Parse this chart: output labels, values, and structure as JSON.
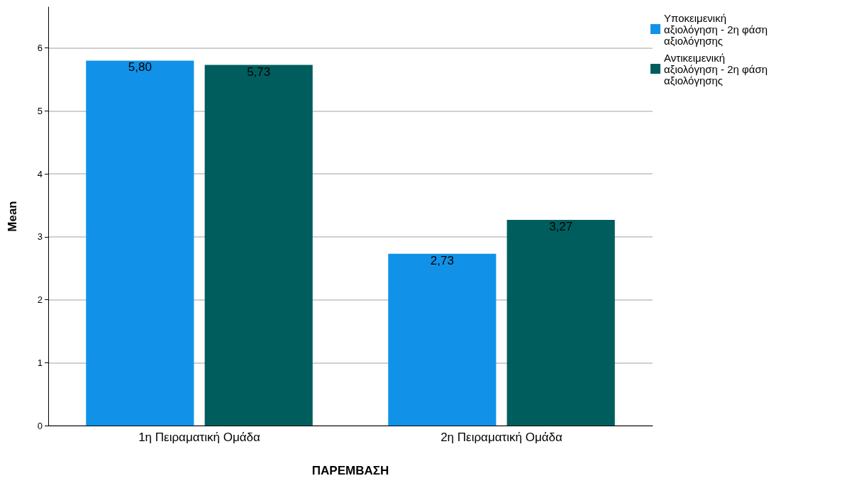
{
  "chart_data": {
    "type": "bar",
    "xlabel": "ΠΑΡΕΜΒΑΣΗ",
    "ylabel": "Mean",
    "categories": [
      "1η Πειραματική Ομάδα",
      "2η Πειραματική Ομάδα"
    ],
    "series": [
      {
        "name": "Υποκειμενική αξιολόγηση - 2η φάση αξιολόγησης",
        "color": "#1192e8",
        "values": [
          5.8,
          2.73
        ],
        "value_labels": [
          "5,80",
          "2,73"
        ]
      },
      {
        "name": "Αντικειμενική αξιολόγηση - 2η φάση αξιολόγησης",
        "color": "#005d5d",
        "values": [
          5.73,
          3.27
        ],
        "value_labels": [
          "5,73",
          "3,27"
        ]
      }
    ],
    "ylim": [
      0,
      6.65
    ],
    "yticks": [
      0,
      1,
      2,
      3,
      4,
      5,
      6
    ],
    "grid": "y",
    "legend": "top right"
  }
}
